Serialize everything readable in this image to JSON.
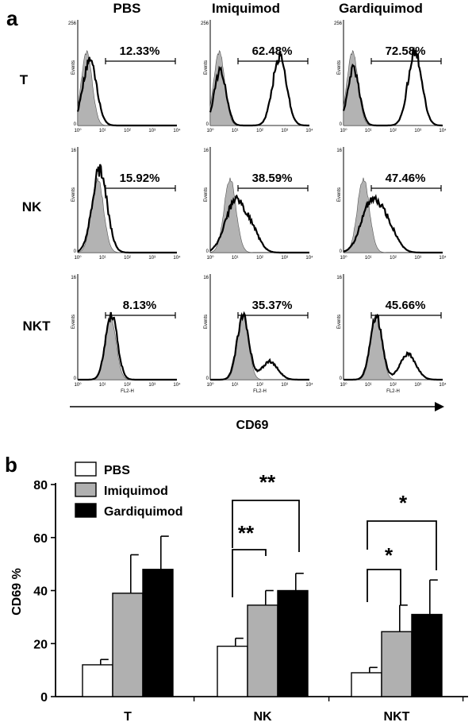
{
  "panel_a": {
    "letter": "a",
    "columns": [
      "PBS",
      "Imiquimod",
      "Gardiquimod"
    ],
    "rows": [
      {
        "label": "T",
        "ymax": "256",
        "ylabel": "Events",
        "xlabel": "",
        "percents": [
          "12.33%",
          "62.48%",
          "72.58%"
        ]
      },
      {
        "label": "NK",
        "ymax": "16",
        "ylabel": "Events",
        "xlabel": "",
        "percents": [
          "15.92%",
          "38.59%",
          "47.46%"
        ]
      },
      {
        "label": "NKT",
        "ymax": "16",
        "ylabel": "Events",
        "xlabel": "FL2-H",
        "percents": [
          "8.13%",
          "35.37%",
          "45.66%"
        ]
      }
    ],
    "xticks": [
      "10⁰",
      "10¹",
      "10²",
      "10³",
      "10⁴"
    ],
    "arrow_label": "CD69"
  },
  "panel_b": {
    "letter": "b",
    "significance": {
      "nk_top": "**",
      "nk_bottom": "**",
      "nkt_top": "*",
      "nkt_bottom": "*"
    }
  },
  "chart_data": {
    "type": "bar",
    "categories": [
      "T",
      "NK",
      "NKT"
    ],
    "series": [
      {
        "name": "PBS",
        "values": [
          12,
          19,
          9
        ],
        "errors": [
          2,
          3,
          2
        ],
        "color": "#ffffff"
      },
      {
        "name": "Imiquimod",
        "values": [
          39,
          34.5,
          24.5
        ],
        "errors": [
          14.5,
          5.5,
          10
        ],
        "color": "#b0b0b0"
      },
      {
        "name": "Gardiquimod",
        "values": [
          48,
          40,
          31
        ],
        "errors": [
          12.5,
          6.5,
          13
        ],
        "color": "#000000"
      }
    ],
    "ylabel": "CD69 %",
    "ylim": [
      0,
      80
    ],
    "yticks": [
      "0",
      "20",
      "40",
      "60",
      "80"
    ],
    "legend_position": "top-left"
  }
}
